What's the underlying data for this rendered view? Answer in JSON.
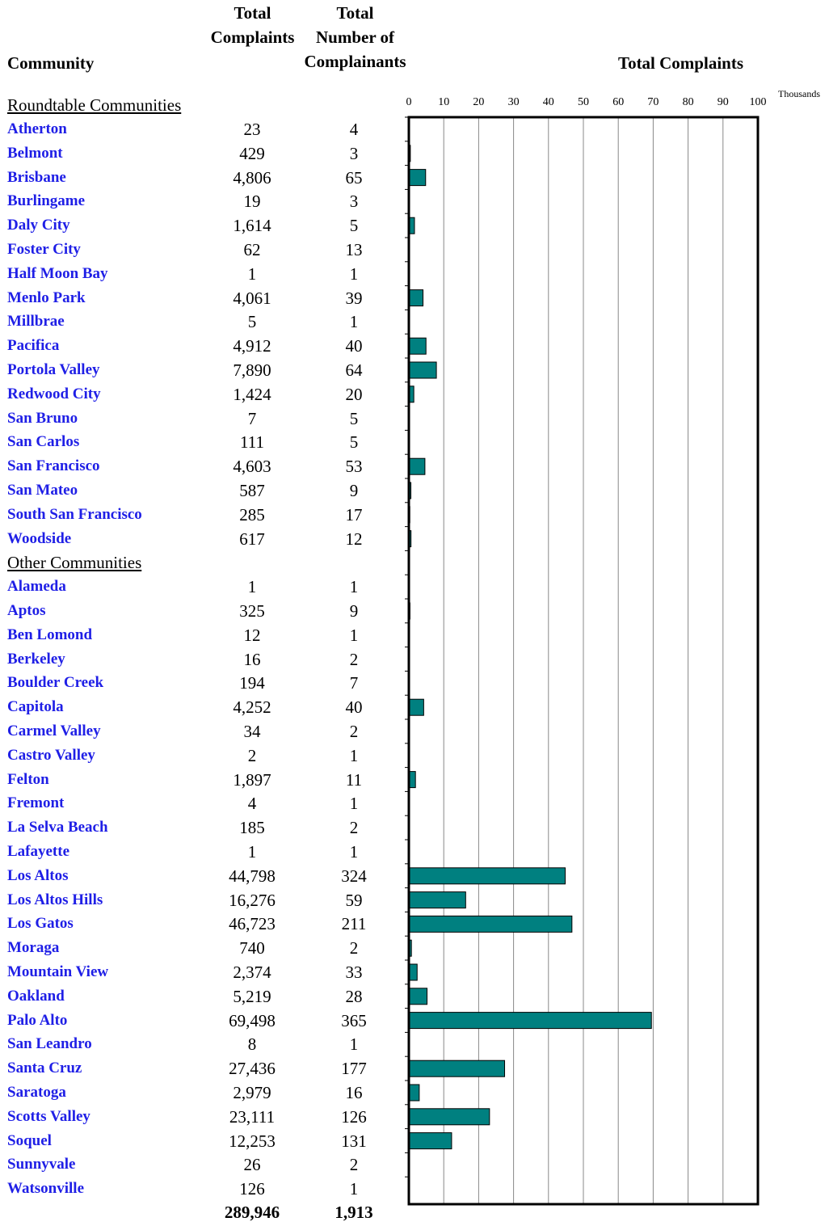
{
  "headers": {
    "community": "Community",
    "total_complaints": [
      "Total",
      "Complaints"
    ],
    "complainants": [
      "Total",
      "Number of",
      "Complainants"
    ],
    "chart_title": "Total Complaints"
  },
  "sections": {
    "roundtable": "Roundtable Communities",
    "other": "Other Communities"
  },
  "totals": {
    "complaints": "289,946",
    "complainants": "1,913"
  },
  "rows": [
    {
      "name": "Atherton",
      "complaints": "23",
      "complainants": "4"
    },
    {
      "name": "Belmont",
      "complaints": "429",
      "complainants": "3"
    },
    {
      "name": "Brisbane",
      "complaints": "4,806",
      "complainants": "65"
    },
    {
      "name": "Burlingame",
      "complaints": "19",
      "complainants": "3"
    },
    {
      "name": "Daly City",
      "complaints": "1,614",
      "complainants": "5"
    },
    {
      "name": "Foster City",
      "complaints": "62",
      "complainants": "13"
    },
    {
      "name": "Half Moon Bay",
      "complaints": "1",
      "complainants": "1"
    },
    {
      "name": "Menlo Park",
      "complaints": "4,061",
      "complainants": "39"
    },
    {
      "name": "Millbrae",
      "complaints": "5",
      "complainants": "1"
    },
    {
      "name": "Pacifica",
      "complaints": "4,912",
      "complainants": "40"
    },
    {
      "name": "Portola Valley",
      "complaints": "7,890",
      "complainants": "64"
    },
    {
      "name": "Redwood City",
      "complaints": "1,424",
      "complainants": "20"
    },
    {
      "name": "San Bruno",
      "complaints": "7",
      "complainants": "5"
    },
    {
      "name": "San Carlos",
      "complaints": "111",
      "complainants": "5"
    },
    {
      "name": "San Francisco",
      "complaints": "4,603",
      "complainants": "53"
    },
    {
      "name": "San Mateo",
      "complaints": "587",
      "complainants": "9"
    },
    {
      "name": "South San Francisco",
      "complaints": "285",
      "complainants": "17"
    },
    {
      "name": "Woodside",
      "complaints": "617",
      "complainants": "12"
    },
    {
      "name": "Alameda",
      "complaints": "1",
      "complainants": "1"
    },
    {
      "name": "Aptos",
      "complaints": "325",
      "complainants": "9"
    },
    {
      "name": "Ben Lomond",
      "complaints": "12",
      "complainants": "1"
    },
    {
      "name": "Berkeley",
      "complaints": "16",
      "complainants": "2"
    },
    {
      "name": "Boulder Creek",
      "complaints": "194",
      "complainants": "7"
    },
    {
      "name": "Capitola",
      "complaints": "4,252",
      "complainants": "40"
    },
    {
      "name": "Carmel Valley",
      "complaints": "34",
      "complainants": "2"
    },
    {
      "name": "Castro Valley",
      "complaints": "2",
      "complainants": "1"
    },
    {
      "name": "Felton",
      "complaints": "1,897",
      "complainants": "11"
    },
    {
      "name": "Fremont",
      "complaints": "4",
      "complainants": "1"
    },
    {
      "name": "La Selva Beach",
      "complaints": "185",
      "complainants": "2"
    },
    {
      "name": "Lafayette",
      "complaints": "1",
      "complainants": "1"
    },
    {
      "name": "Los Altos",
      "complaints": "44,798",
      "complainants": "324"
    },
    {
      "name": "Los Altos Hills",
      "complaints": "16,276",
      "complainants": "59"
    },
    {
      "name": "Los Gatos",
      "complaints": "46,723",
      "complainants": "211"
    },
    {
      "name": "Moraga",
      "complaints": "740",
      "complainants": "2"
    },
    {
      "name": "Mountain View",
      "complaints": "2,374",
      "complainants": "33"
    },
    {
      "name": "Oakland",
      "complaints": "5,219",
      "complainants": "28"
    },
    {
      "name": "Palo Alto",
      "complaints": "69,498",
      "complainants": "365"
    },
    {
      "name": "San Leandro",
      "complaints": "8",
      "complainants": "1"
    },
    {
      "name": "Santa Cruz",
      "complaints": "27,436",
      "complainants": "177"
    },
    {
      "name": "Saratoga",
      "complaints": "2,979",
      "complainants": "16"
    },
    {
      "name": "Scotts Valley",
      "complaints": "23,111",
      "complainants": "126"
    },
    {
      "name": "Soquel",
      "complaints": "12,253",
      "complainants": "131"
    },
    {
      "name": "Sunnyvale",
      "complaints": "26",
      "complainants": "2"
    },
    {
      "name": "Watsonville",
      "complaints": "126",
      "complainants": "1"
    }
  ],
  "chart_data": {
    "type": "bar",
    "orientation": "horizontal",
    "title": "Total Complaints",
    "axis_unit_label": "Thousands",
    "xlim": [
      0,
      100
    ],
    "ticks": [
      "0",
      "10",
      "20",
      "30",
      "40",
      "50",
      "60",
      "70",
      "80",
      "90",
      "100"
    ],
    "grid": true,
    "bar_color": "#008080",
    "categories": [
      "Atherton",
      "Belmont",
      "Brisbane",
      "Burlingame",
      "Daly City",
      "Foster City",
      "Half Moon Bay",
      "Menlo Park",
      "Millbrae",
      "Pacifica",
      "Portola Valley",
      "Redwood City",
      "San Bruno",
      "San Carlos",
      "San Francisco",
      "San Mateo",
      "South San Francisco",
      "Woodside",
      "Alameda",
      "Aptos",
      "Ben Lomond",
      "Berkeley",
      "Boulder Creek",
      "Capitola",
      "Carmel Valley",
      "Castro Valley",
      "Felton",
      "Fremont",
      "La Selva Beach",
      "Lafayette",
      "Los Altos",
      "Los Altos Hills",
      "Los Gatos",
      "Moraga",
      "Mountain View",
      "Oakland",
      "Palo Alto",
      "San Leandro",
      "Santa Cruz",
      "Saratoga",
      "Scotts Valley",
      "Soquel",
      "Sunnyvale",
      "Watsonville"
    ],
    "values": [
      0.023,
      0.429,
      4.806,
      0.019,
      1.614,
      0.062,
      0.001,
      4.061,
      0.005,
      4.912,
      7.89,
      1.424,
      0.007,
      0.111,
      4.603,
      0.587,
      0.285,
      0.617,
      0.001,
      0.325,
      0.012,
      0.016,
      0.194,
      4.252,
      0.034,
      0.002,
      1.897,
      0.004,
      0.185,
      0.001,
      44.798,
      16.276,
      46.723,
      0.74,
      2.374,
      5.219,
      69.498,
      0.008,
      27.436,
      2.979,
      23.111,
      12.253,
      0.026,
      0.126
    ]
  }
}
